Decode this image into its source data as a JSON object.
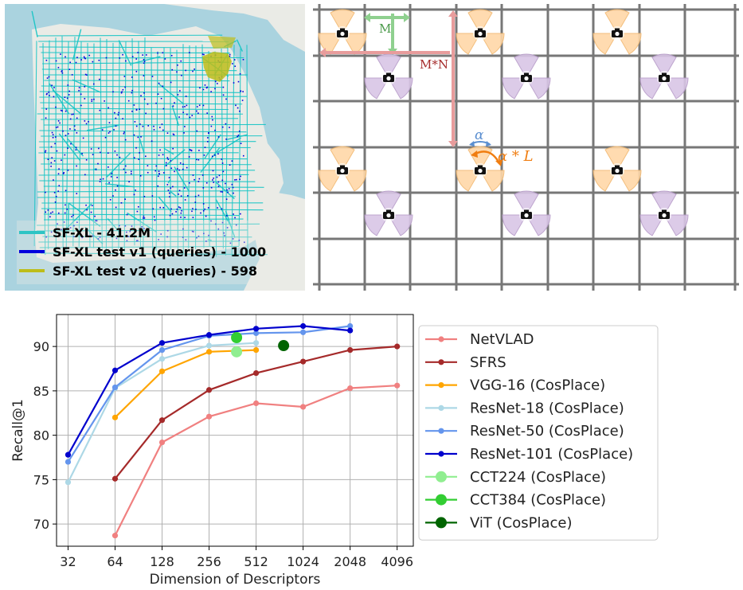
{
  "map": {
    "legend": [
      {
        "label": "SF-XL - 41.2M",
        "color": "#2ec4c4"
      },
      {
        "label": "SF-XL test v1 (queries) - 1000",
        "color": "#0000dd"
      },
      {
        "label": "SF-XL test v2 (queries) - 598",
        "color": "#bdbd1a"
      }
    ],
    "colors": {
      "land": "#eaebe6",
      "water": "#aad3df",
      "roads": "#12c4c4",
      "points": "#0000dd",
      "v2": "#bdbd1a"
    }
  },
  "grid": {
    "labels": {
      "m": "M",
      "mn": "M*N",
      "alpha": "α",
      "alpha_l": "α * L"
    },
    "colors": {
      "orange": "#ffd8a8",
      "purple": "#d9c6e6",
      "grid": "#777777",
      "m_arrow": "#8fd08f",
      "mn_arrow": "#e89c9c",
      "alpha": "#5b8fd0",
      "alpha_l": "#f07d10"
    },
    "icons": {
      "camera": "camera-icon"
    }
  },
  "chart_data": {
    "type": "line",
    "xscale": "log2",
    "xlabel": "Dimension of Descriptors",
    "ylabel": "Recall@1",
    "xticks": [
      32,
      64,
      128,
      256,
      512,
      1024,
      2048,
      4096
    ],
    "xtick_labels": [
      "32",
      "64",
      "128",
      "256",
      "512",
      "1024",
      "2048",
      "4096"
    ],
    "yticks": [
      70,
      75,
      80,
      85,
      90
    ],
    "ylim": [
      67.5,
      93.6
    ],
    "xlim": [
      27,
      5200
    ],
    "grid": true,
    "legend_position": "outside-right",
    "series": [
      {
        "name": "NetVLAD",
        "color": "#f08080",
        "marker": "small",
        "x": [
          64,
          128,
          256,
          512,
          1024,
          2048,
          4096
        ],
        "y": [
          68.7,
          79.2,
          82.1,
          83.6,
          83.2,
          85.3,
          85.6
        ]
      },
      {
        "name": "SFRS",
        "color": "#a52a2a",
        "marker": "small",
        "x": [
          64,
          128,
          256,
          512,
          1024,
          2048,
          4096
        ],
        "y": [
          75.1,
          81.7,
          85.1,
          87.0,
          88.3,
          89.6,
          90.0
        ]
      },
      {
        "name": "VGG-16 (CosPlace)",
        "color": "#ffa500",
        "marker": "small",
        "x": [
          64,
          128,
          256,
          512
        ],
        "y": [
          82.0,
          87.2,
          89.4,
          89.6
        ]
      },
      {
        "name": "ResNet-18 (CosPlace)",
        "color": "#add8e6",
        "marker": "small",
        "x": [
          32,
          64,
          128,
          256,
          512
        ],
        "y": [
          74.7,
          85.3,
          88.6,
          90.1,
          90.4
        ]
      },
      {
        "name": "ResNet-50 (CosPlace)",
        "color": "#6495ed",
        "marker": "small",
        "x": [
          32,
          64,
          128,
          256,
          512,
          1024,
          2048
        ],
        "y": [
          77.0,
          85.4,
          89.6,
          91.2,
          91.5,
          91.6,
          92.3
        ]
      },
      {
        "name": "ResNet-101 (CosPlace)",
        "color": "#0000cd",
        "marker": "small",
        "x": [
          32,
          64,
          128,
          256,
          512,
          1024,
          2048
        ],
        "y": [
          77.8,
          87.3,
          90.4,
          91.3,
          92.0,
          92.3,
          91.8
        ]
      },
      {
        "name": "CCT224 (CosPlace)",
        "color": "#90ee90",
        "marker": "large",
        "x": [
          384
        ],
        "y": [
          89.4
        ]
      },
      {
        "name": "CCT384 (CosPlace)",
        "color": "#32cd32",
        "marker": "large",
        "x": [
          384
        ],
        "y": [
          91.0
        ]
      },
      {
        "name": "ViT (CosPlace)",
        "color": "#006400",
        "marker": "large",
        "x": [
          768
        ],
        "y": [
          90.1
        ]
      }
    ]
  }
}
